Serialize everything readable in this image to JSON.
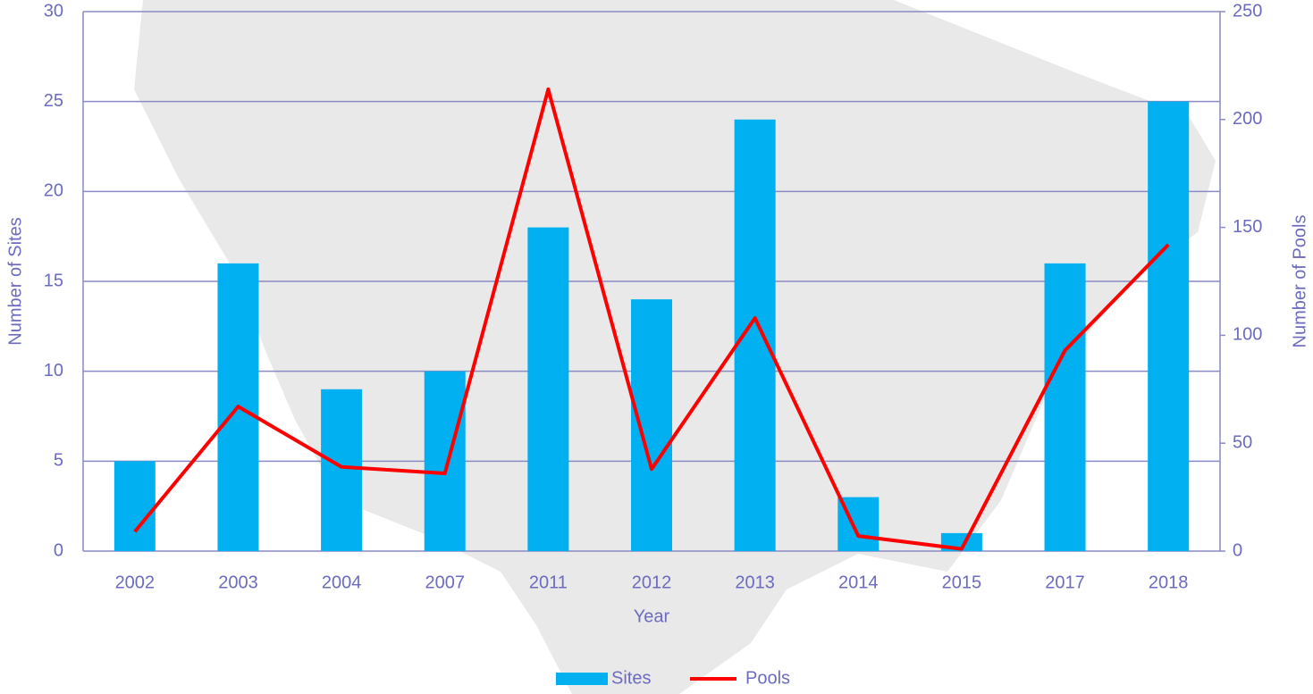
{
  "chart_data": {
    "type": "bar",
    "x_label": "Year",
    "y_label": "Number of Sites",
    "y2_label": "Number of Pools",
    "categories": [
      "2002",
      "2003",
      "2004",
      "2007",
      "2011",
      "2012",
      "2013",
      "2014",
      "2015",
      "2017",
      "2018"
    ],
    "series": [
      {
        "name": "Sites",
        "type": "bar",
        "color": "#00b0f0",
        "values": [
          5,
          16,
          9,
          10,
          18,
          14,
          24,
          3,
          1,
          16,
          25
        ]
      },
      {
        "name": "Pools",
        "type": "line",
        "axis": "y2",
        "color": "#ff0000",
        "values": [
          9,
          67,
          39,
          36,
          214,
          38,
          108,
          7,
          1,
          93,
          142
        ]
      }
    ],
    "ylim": [
      0,
      30
    ],
    "yticks": [
      0,
      5,
      10,
      15,
      20,
      25,
      30
    ],
    "y2lim": [
      0,
      250
    ],
    "y2ticks": [
      0,
      50,
      100,
      150,
      200,
      250
    ],
    "grid": true,
    "legend": "bottom"
  }
}
